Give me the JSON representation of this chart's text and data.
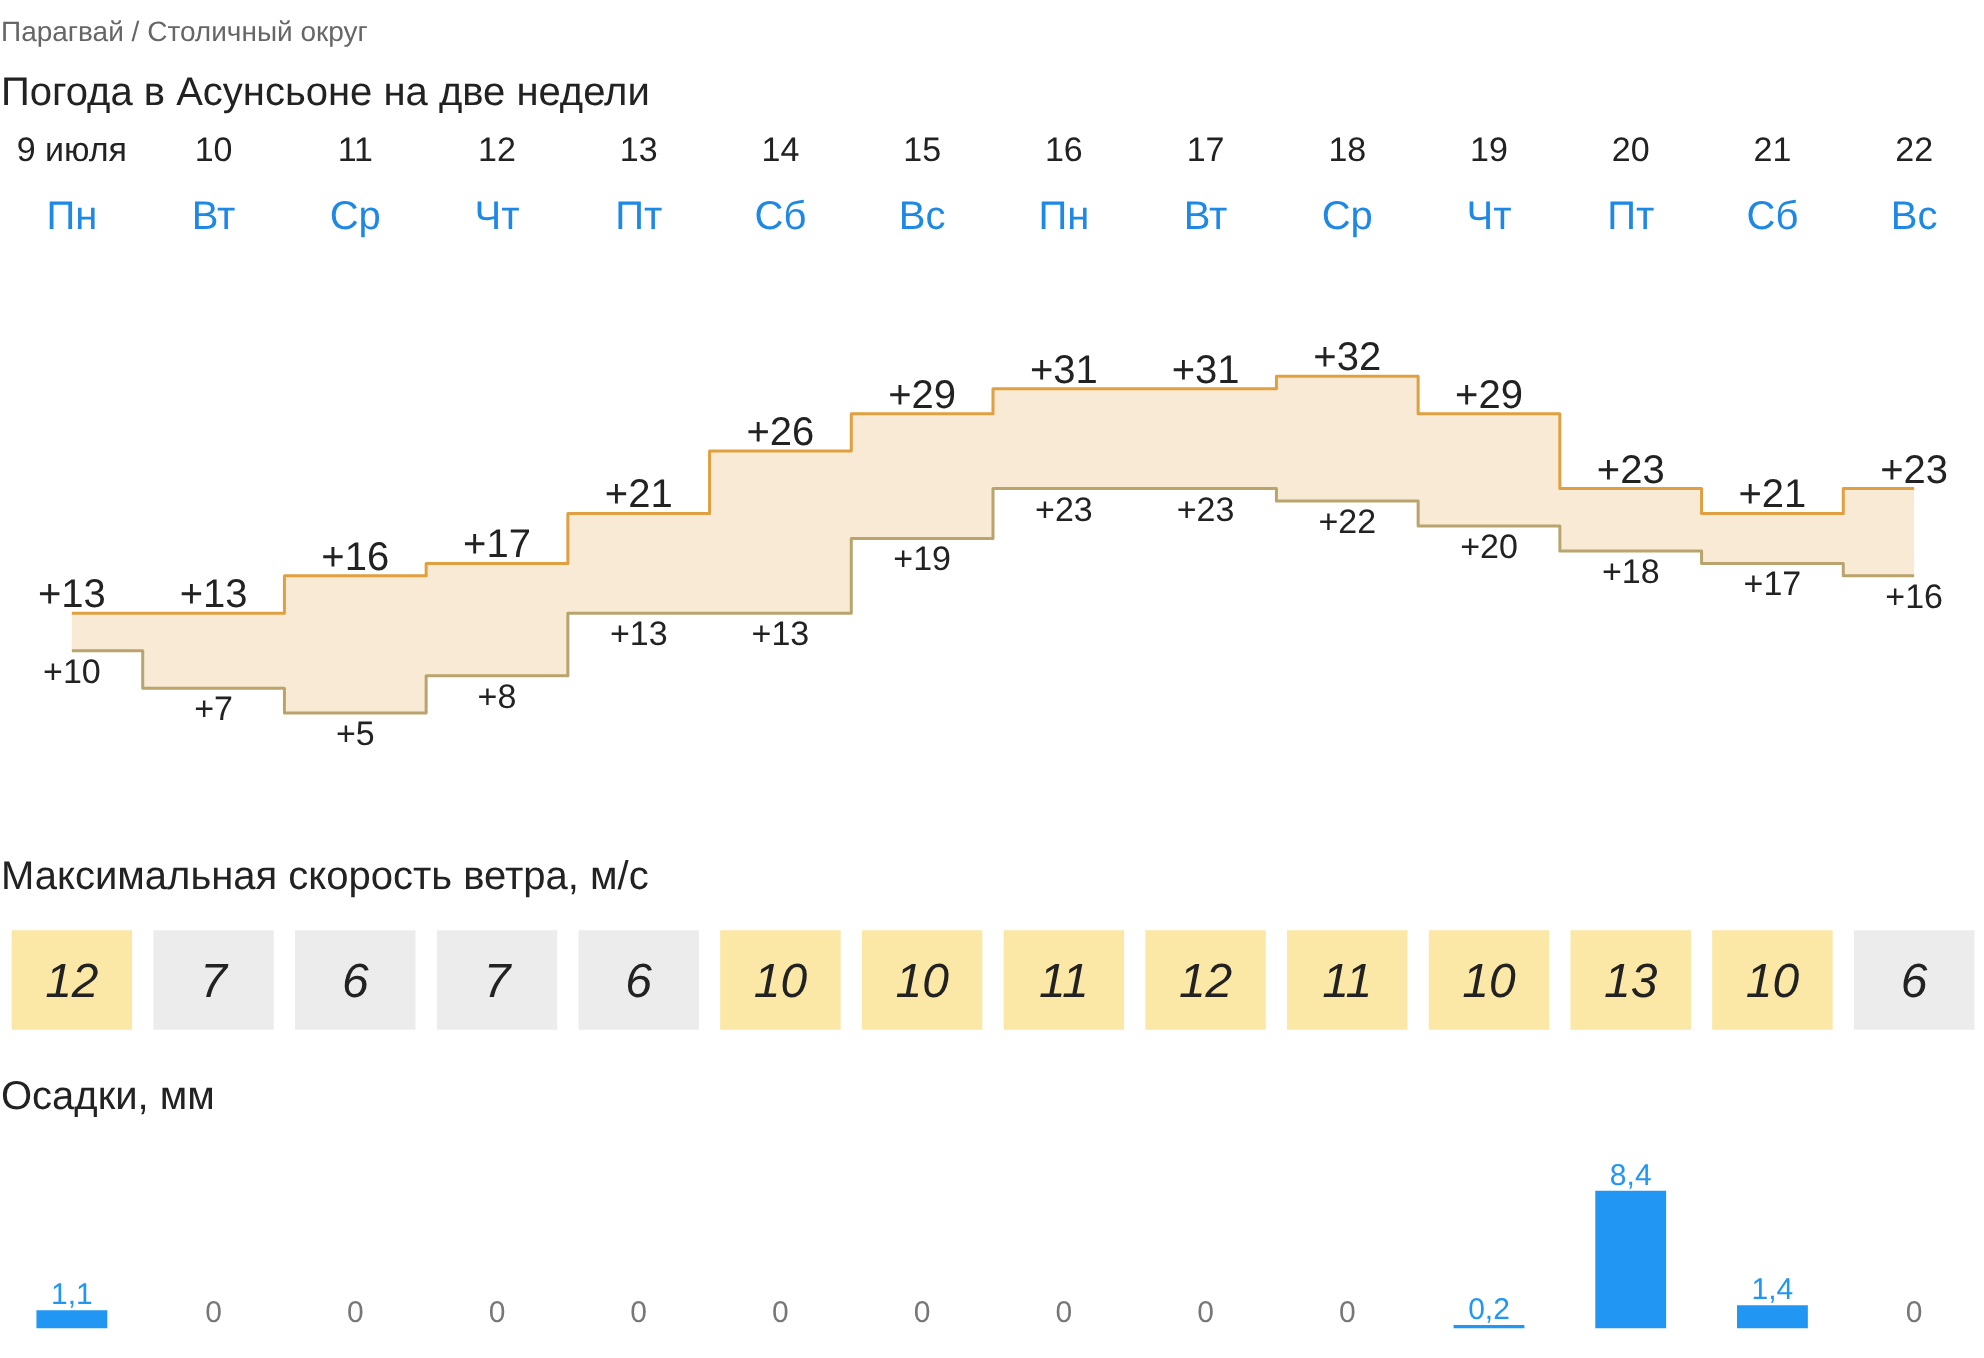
{
  "chart_data": [
    {
      "type": "step",
      "subtitle": "Парагвай / Столичный округ",
      "title": "Погода в Асунсьоне на две недели",
      "tick_labels": "x",
      "categories": [
        "9 июля",
        "10",
        "11",
        "12",
        "13",
        "14",
        "15",
        "16",
        "17",
        "18",
        "19",
        "20",
        "21",
        "22"
      ],
      "annotations": [
        "Пн",
        "Вт",
        "Ср",
        "Чт",
        "Пт",
        "Сб",
        "Вс",
        "Пн",
        "Вт",
        "Ср",
        "Чт",
        "Пт",
        "Сб",
        "Вс"
      ],
      "series": [
        {
          "color": "#e0a040",
          "values": [
            13,
            13,
            16,
            17,
            21,
            26,
            29,
            31,
            31,
            32,
            29,
            23,
            21,
            23
          ],
          "lower": [
            10,
            7,
            5,
            8,
            13,
            13,
            19,
            23,
            23,
            22,
            20,
            18,
            17,
            16
          ],
          "upper": [
            13,
            13,
            16,
            17,
            21,
            26,
            29,
            31,
            31,
            32,
            29,
            23,
            21,
            23
          ],
          "value_labels": [
            "+13",
            "+13",
            "+16",
            "+17",
            "+21",
            "+26",
            "+29",
            "+31",
            "+31",
            "+32",
            "+29",
            "+23",
            "+21",
            "+23"
          ]
        },
        {
          "color": "#b8a46c",
          "values": [
            10,
            7,
            5,
            8,
            13,
            13,
            19,
            23,
            23,
            22,
            20,
            18,
            17,
            16
          ],
          "value_labels": [
            "+10",
            "+7",
            "+5",
            "+8",
            "+13",
            "+13",
            "+19",
            "+23",
            "+23",
            "+22",
            "+20",
            "+18",
            "+17",
            "+16"
          ]
        }
      ]
    },
    {
      "type": "other",
      "title": "Максимальная скорость ветра, м/с",
      "annotations": [
        "12",
        "7",
        "6",
        "7",
        "6",
        "10",
        "10",
        "11",
        "12",
        "11",
        "10",
        "13",
        "10",
        "6"
      ],
      "colors": [
        "#fbe7a6",
        "#ececec",
        "#ececec",
        "#ececec",
        "#ececec",
        "#fbe7a6",
        "#fbe7a6",
        "#fbe7a6",
        "#fbe7a6",
        "#fbe7a6",
        "#fbe7a6",
        "#fbe7a6",
        "#fbe7a6",
        "#ececec"
      ]
    },
    {
      "type": "bar",
      "title": "Осадки, мм",
      "color": "#2196f3",
      "tick_labels": false,
      "categories": [
        null,
        null,
        null,
        null,
        null,
        null,
        null,
        null,
        null,
        null,
        null,
        null,
        null,
        null
      ],
      "values": [
        1.1,
        0,
        0,
        0,
        0,
        0,
        0,
        0,
        0,
        0,
        0.2,
        8.4,
        1.4,
        0
      ],
      "value_labels": [
        "1,1",
        "0",
        "0",
        "0",
        "0",
        "0",
        "0",
        "0",
        "0",
        "0",
        "0,2",
        "8,4",
        "1,4",
        "0"
      ]
    }
  ]
}
